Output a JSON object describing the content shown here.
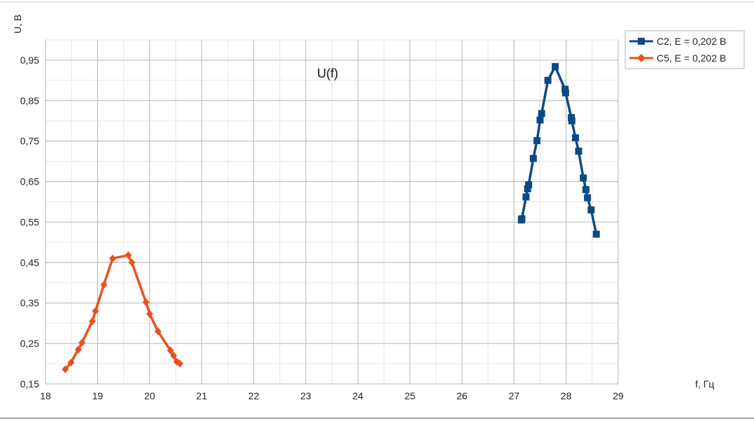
{
  "chart_data": {
    "type": "line",
    "title": "U(f)",
    "xlabel": "f, Гц",
    "ylabel": "U, В",
    "xlim": [
      18,
      29
    ],
    "ylim": [
      0.15,
      1.0
    ],
    "x_ticks": [
      18,
      19,
      20,
      21,
      22,
      23,
      24,
      25,
      26,
      27,
      28,
      29
    ],
    "y_ticks": [
      0.15,
      0.25,
      0.35,
      0.45,
      0.55,
      0.65,
      0.75,
      0.85,
      0.95
    ],
    "x_tick_labels": [
      "18",
      "19",
      "20",
      "21",
      "22",
      "23",
      "24",
      "25",
      "26",
      "27",
      "28",
      "29"
    ],
    "y_tick_labels": [
      "0,15",
      "0,25",
      "0,35",
      "0,45",
      "0,55",
      "0,65",
      "0,75",
      "0,85",
      "0,95"
    ],
    "grid": true,
    "minor_grid": true,
    "legend_position": "top-right",
    "series": [
      {
        "name": "C2, E = 0,202 В",
        "color": "#0d4a84",
        "marker": "square",
        "x": [
          27.14,
          27.15,
          27.23,
          27.26,
          27.28,
          27.37,
          27.44,
          27.5,
          27.53,
          27.65,
          27.79,
          27.98,
          27.99,
          28.1,
          28.11,
          28.18,
          28.24,
          28.33,
          28.38,
          28.41,
          28.48,
          28.58
        ],
        "y": [
          0.555,
          0.558,
          0.612,
          0.632,
          0.642,
          0.707,
          0.751,
          0.802,
          0.818,
          0.9,
          0.934,
          0.878,
          0.869,
          0.808,
          0.8,
          0.758,
          0.725,
          0.659,
          0.63,
          0.61,
          0.58,
          0.52
        ]
      },
      {
        "name": "C5, E = 0,202 В",
        "color": "#e8511f",
        "marker": "diamond",
        "x": [
          18.38,
          18.49,
          18.63,
          18.7,
          18.9,
          18.96,
          19.12,
          19.29,
          19.59,
          19.66,
          19.93,
          20.0,
          20.16,
          20.4,
          20.46,
          20.52,
          20.58
        ],
        "y": [
          0.186,
          0.203,
          0.235,
          0.252,
          0.305,
          0.33,
          0.395,
          0.46,
          0.468,
          0.45,
          0.352,
          0.323,
          0.28,
          0.233,
          0.22,
          0.205,
          0.2
        ]
      }
    ]
  }
}
